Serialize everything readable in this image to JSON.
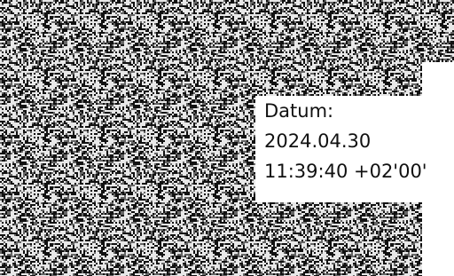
{
  "signature": {
    "label": "Datum:",
    "date": "2024.04.30",
    "time": "11:39:40 +02'00'"
  }
}
